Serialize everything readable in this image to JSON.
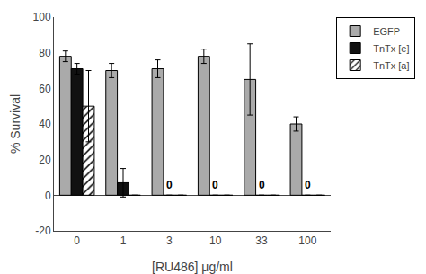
{
  "chart_data": {
    "type": "bar",
    "xlabel": "[RU486] μg/ml",
    "ylabel": "% Survival",
    "categories": [
      "0",
      "1",
      "3",
      "10",
      "33",
      "100"
    ],
    "series": [
      {
        "name": "EGFP",
        "color": "#aaaaaa",
        "values": [
          78,
          70,
          71,
          78,
          65,
          40
        ],
        "errors": [
          3,
          4,
          5,
          4,
          20,
          4
        ]
      },
      {
        "name": "TnTx [e]",
        "color": "#111111",
        "values": [
          71,
          7,
          0,
          0,
          0,
          0
        ],
        "errors": [
          3,
          8,
          0,
          0,
          0,
          0
        ]
      },
      {
        "name": "TnTx [a]",
        "color": "#ffffff",
        "marker": "hatched",
        "values": [
          50,
          0,
          0,
          0,
          0,
          0
        ],
        "errors": [
          20,
          0,
          0,
          0,
          0,
          0
        ]
      }
    ],
    "annotations": [
      {
        "text": "0",
        "category": "3"
      },
      {
        "text": "0",
        "category": "10"
      },
      {
        "text": "0",
        "category": "33"
      },
      {
        "text": "0",
        "category": "100"
      }
    ],
    "ylim": [
      -20,
      100
    ],
    "yticks": [
      -20,
      0,
      20,
      40,
      60,
      80,
      100
    ],
    "grid": false,
    "legend": "upper right"
  }
}
